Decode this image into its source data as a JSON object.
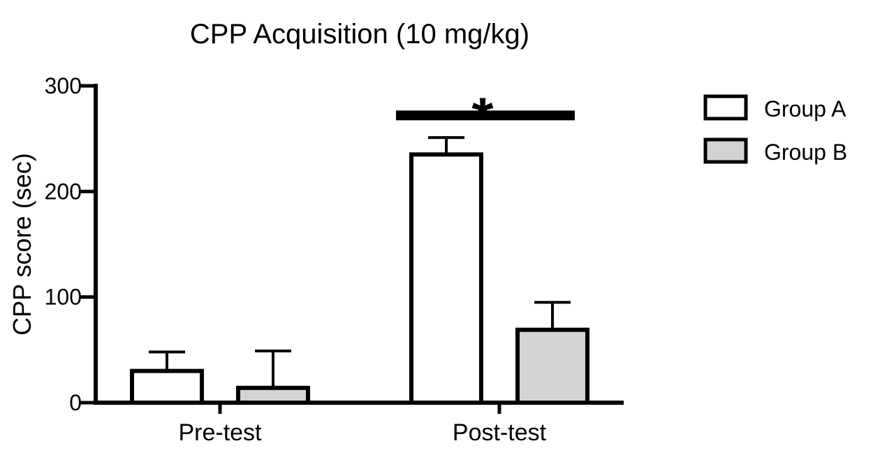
{
  "chart_data": {
    "type": "bar",
    "title": "CPP Acquisition (10 mg/kg)",
    "ylabel": "CPP score (sec)",
    "xlabel": "",
    "ylim": [
      0,
      300
    ],
    "yticks": [
      0,
      100,
      200,
      300
    ],
    "categories": [
      "Pre-test",
      "Post-test"
    ],
    "series": [
      {
        "name": "Group A",
        "values": [
          30,
          235
        ],
        "error": [
          18,
          16
        ],
        "color": "#ffffff"
      },
      {
        "name": "Group B",
        "values": [
          14,
          69
        ],
        "error": [
          35,
          26
        ],
        "color": "#d3d3d3"
      }
    ],
    "annotations": [
      {
        "text": "*",
        "category": "Post-test",
        "y": 272
      }
    ],
    "legend_position": "top-right",
    "grid": false
  }
}
